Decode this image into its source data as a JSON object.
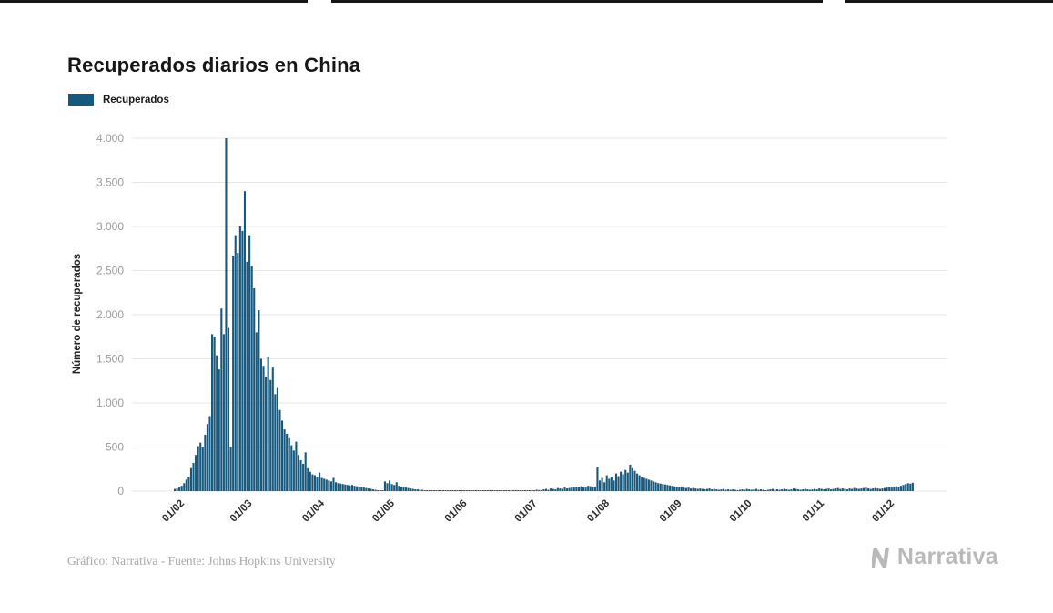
{
  "page": {
    "title": "Recuperados diarios en China",
    "footer": "Gráfico: Narrativa - Fuente: Johns Hopkins University",
    "brand": "Narrativa"
  },
  "legend": {
    "label": "Recuperados"
  },
  "chart_data": {
    "type": "bar",
    "title": "Recuperados diarios en China",
    "series_name": "Recuperados",
    "xlabel": "",
    "ylabel": "Número de recuperados",
    "ylim": [
      0,
      4000
    ],
    "grid": "horizontal",
    "legend_position": "top-left",
    "bar_color": "#16587e",
    "y_ticks": [
      0,
      500,
      1000,
      1500,
      2000,
      2500,
      3000,
      3500,
      4000
    ],
    "y_tick_labels": [
      "0",
      "500",
      "1.000",
      "1.500",
      "2.000",
      "2.500",
      "3.000",
      "3.500",
      "4.000"
    ],
    "x_tick_labels": [
      "01/02",
      "01/03",
      "01/04",
      "01/05",
      "01/06",
      "01/07",
      "01/08",
      "01/09",
      "01/10",
      "01/11",
      "01/12"
    ],
    "x_tick_day_index": [
      0,
      29,
      60,
      90,
      121,
      151,
      182,
      213,
      243,
      274,
      304
    ],
    "start_date": "01/02",
    "values": [
      25,
      30,
      45,
      60,
      90,
      130,
      160,
      260,
      320,
      410,
      510,
      550,
      500,
      640,
      760,
      850,
      1780,
      1750,
      1540,
      1380,
      2070,
      1780,
      4000,
      1850,
      500,
      2670,
      2900,
      2700,
      3000,
      2950,
      3400,
      2600,
      2900,
      2550,
      2300,
      1800,
      2050,
      1500,
      1420,
      1300,
      1520,
      1260,
      1400,
      1100,
      1170,
      920,
      800,
      700,
      650,
      600,
      520,
      460,
      560,
      410,
      350,
      310,
      440,
      260,
      220,
      190,
      180,
      160,
      210,
      150,
      140,
      130,
      120,
      110,
      150,
      100,
      90,
      85,
      80,
      75,
      70,
      65,
      70,
      60,
      55,
      50,
      45,
      40,
      35,
      30,
      25,
      20,
      15,
      10,
      10,
      5,
      110,
      90,
      120,
      80,
      70,
      100,
      60,
      50,
      45,
      40,
      35,
      30,
      25,
      20,
      20,
      15,
      15,
      10,
      10,
      10,
      8,
      8,
      6,
      6,
      5,
      5,
      5,
      4,
      4,
      3,
      3,
      5,
      8,
      4,
      6,
      10,
      5,
      4,
      3,
      6,
      8,
      5,
      4,
      3,
      5,
      12,
      8,
      6,
      5,
      4,
      6,
      8,
      10,
      6,
      5,
      8,
      12,
      10,
      8,
      6,
      5,
      10,
      8,
      12,
      10,
      15,
      12,
      10,
      20,
      25,
      15,
      30,
      25,
      20,
      35,
      30,
      25,
      40,
      30,
      35,
      45,
      40,
      50,
      45,
      55,
      50,
      40,
      60,
      55,
      50,
      45,
      270,
      120,
      150,
      100,
      180,
      140,
      160,
      120,
      200,
      170,
      220,
      190,
      240,
      210,
      300,
      260,
      230,
      200,
      180,
      160,
      150,
      140,
      130,
      120,
      110,
      100,
      90,
      85,
      80,
      75,
      70,
      65,
      60,
      55,
      50,
      45,
      50,
      40,
      35,
      40,
      30,
      35,
      30,
      25,
      30,
      25,
      20,
      25,
      30,
      20,
      25,
      20,
      15,
      20,
      25,
      15,
      20,
      15,
      20,
      15,
      10,
      15,
      20,
      15,
      25,
      20,
      15,
      20,
      25,
      15,
      20,
      15,
      10,
      15,
      20,
      25,
      15,
      20,
      15,
      20,
      25,
      20,
      15,
      20,
      30,
      25,
      20,
      15,
      20,
      25,
      20,
      15,
      20,
      25,
      20,
      30,
      25,
      20,
      25,
      30,
      20,
      25,
      30,
      35,
      25,
      30,
      25,
      20,
      30,
      25,
      35,
      30,
      25,
      30,
      35,
      40,
      30,
      25,
      30,
      35,
      30,
      25,
      30,
      35,
      40,
      45,
      40,
      50,
      55,
      50,
      60,
      70,
      80,
      90,
      85,
      95
    ]
  }
}
